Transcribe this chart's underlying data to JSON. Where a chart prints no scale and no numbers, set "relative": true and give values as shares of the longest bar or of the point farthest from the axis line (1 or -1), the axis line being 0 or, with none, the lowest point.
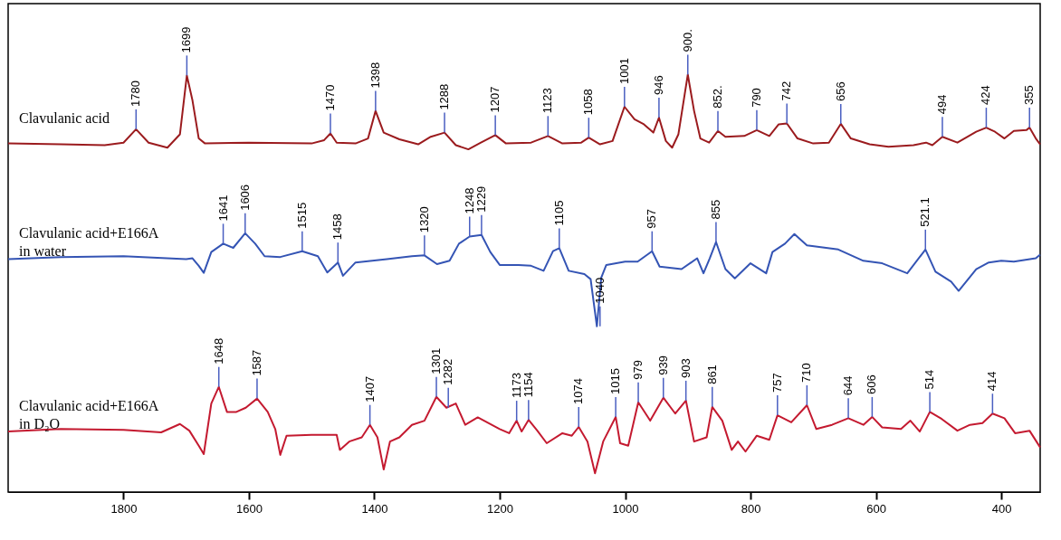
{
  "chart_data": {
    "type": "line",
    "relative": true,
    "xlim": [
      1984,
      338
    ],
    "xticks": [
      1800,
      1600,
      1400,
      1200,
      1000,
      800,
      600,
      400
    ],
    "grid": false,
    "legend": false,
    "series": [
      {
        "name": "Clavulanic acid",
        "color": "#9b1b1e",
        "x": [
          1984,
          1900,
          1830,
          1800,
          1780,
          1760,
          1730,
          1710,
          1699,
          1690,
          1680,
          1670,
          1600,
          1500,
          1480,
          1470,
          1460,
          1430,
          1410,
          1398,
          1385,
          1360,
          1330,
          1310,
          1288,
          1270,
          1250,
          1230,
          1207,
          1190,
          1150,
          1123,
          1100,
          1070,
          1058,
          1040,
          1020,
          1001,
          985,
          970,
          955,
          946,
          935,
          925,
          915,
          900,
          890,
          880,
          866,
          852,
          840,
          810,
          790,
          770,
          755,
          742,
          725,
          700,
          675,
          656,
          640,
          610,
          580,
          540,
          520,
          510,
          494,
          470,
          440,
          424,
          410,
          395,
          380,
          360,
          355,
          345,
          338
        ],
        "values": [
          0.835,
          0.833,
          0.831,
          0.837,
          0.869,
          0.837,
          0.825,
          0.857,
          0.998,
          0.938,
          0.847,
          0.835,
          0.837,
          0.835,
          0.843,
          0.859,
          0.837,
          0.835,
          0.847,
          0.913,
          0.861,
          0.845,
          0.833,
          0.851,
          0.861,
          0.831,
          0.821,
          0.837,
          0.855,
          0.835,
          0.837,
          0.853,
          0.835,
          0.837,
          0.849,
          0.833,
          0.841,
          0.923,
          0.893,
          0.881,
          0.861,
          0.897,
          0.841,
          0.825,
          0.857,
          1.0,
          0.913,
          0.847,
          0.837,
          0.865,
          0.851,
          0.853,
          0.867,
          0.853,
          0.881,
          0.883,
          0.847,
          0.835,
          0.837,
          0.882,
          0.847,
          0.833,
          0.827,
          0.831,
          0.837,
          0.831,
          0.851,
          0.837,
          0.863,
          0.873,
          0.863,
          0.847,
          0.865,
          0.867,
          0.873,
          0.847,
          0.833
        ]
      },
      {
        "name": "Clavulanic acid+E166A\nin water",
        "color": "#3454b4",
        "x": [
          1984,
          1900,
          1800,
          1700,
          1690,
          1680,
          1672,
          1660,
          1641,
          1625,
          1606,
          1590,
          1575,
          1550,
          1515,
          1490,
          1475,
          1458,
          1450,
          1430,
          1380,
          1340,
          1320,
          1300,
          1280,
          1265,
          1248,
          1229,
          1215,
          1200,
          1170,
          1150,
          1130,
          1115,
          1105,
          1090,
          1065,
          1055,
          1045,
          1038,
          1030,
          1000,
          980,
          957,
          945,
          910,
          885,
          875,
          865,
          855,
          840,
          825,
          800,
          775,
          765,
          745,
          730,
          710,
          660,
          620,
          590,
          550,
          521,
          505,
          480,
          468,
          440,
          420,
          400,
          380,
          345,
          338
        ],
        "values": [
          0.558,
          0.563,
          0.565,
          0.558,
          0.56,
          0.542,
          0.525,
          0.575,
          0.595,
          0.585,
          0.62,
          0.595,
          0.565,
          0.563,
          0.577,
          0.565,
          0.526,
          0.55,
          0.518,
          0.55,
          0.558,
          0.565,
          0.567,
          0.546,
          0.554,
          0.595,
          0.612,
          0.616,
          0.575,
          0.544,
          0.544,
          0.542,
          0.53,
          0.577,
          0.584,
          0.53,
          0.522,
          0.51,
          0.397,
          0.514,
          0.544,
          0.552,
          0.552,
          0.577,
          0.54,
          0.534,
          0.56,
          0.524,
          0.56,
          0.599,
          0.534,
          0.512,
          0.548,
          0.524,
          0.575,
          0.595,
          0.618,
          0.591,
          0.581,
          0.554,
          0.548,
          0.524,
          0.581,
          0.528,
          0.504,
          0.482,
          0.534,
          0.55,
          0.554,
          0.552,
          0.56,
          0.569
        ]
      },
      {
        "name": "Clavulanic acid+E166A\nin D₂O",
        "color": "#c41a30",
        "x": [
          1984,
          1900,
          1800,
          1740,
          1710,
          1695,
          1680,
          1672,
          1660,
          1648,
          1635,
          1620,
          1605,
          1587,
          1570,
          1558,
          1550,
          1540,
          1500,
          1460,
          1455,
          1440,
          1420,
          1407,
          1395,
          1385,
          1375,
          1360,
          1340,
          1320,
          1301,
          1285,
          1270,
          1255,
          1235,
          1200,
          1185,
          1173,
          1165,
          1154,
          1140,
          1125,
          1100,
          1085,
          1074,
          1060,
          1048,
          1035,
          1015,
          1008,
          995,
          979,
          960,
          939,
          920,
          903,
          890,
          870,
          861,
          845,
          830,
          820,
          808,
          790,
          770,
          757,
          735,
          710,
          695,
          670,
          644,
          620,
          606,
          590,
          560,
          545,
          530,
          514,
          495,
          470,
          450,
          430,
          414,
          395,
          378,
          355,
          338
        ],
        "values": [
          0.145,
          0.151,
          0.149,
          0.143,
          0.163,
          0.147,
          0.111,
          0.091,
          0.212,
          0.252,
          0.192,
          0.192,
          0.202,
          0.224,
          0.192,
          0.151,
          0.089,
          0.135,
          0.137,
          0.137,
          0.101,
          0.121,
          0.131,
          0.161,
          0.131,
          0.054,
          0.121,
          0.131,
          0.161,
          0.171,
          0.228,
          0.202,
          0.212,
          0.161,
          0.179,
          0.151,
          0.141,
          0.171,
          0.145,
          0.173,
          0.147,
          0.117,
          0.141,
          0.135,
          0.156,
          0.121,
          0.045,
          0.121,
          0.18,
          0.117,
          0.111,
          0.215,
          0.171,
          0.226,
          0.188,
          0.219,
          0.121,
          0.131,
          0.204,
          0.171,
          0.101,
          0.121,
          0.097,
          0.135,
          0.125,
          0.184,
          0.167,
          0.208,
          0.151,
          0.161,
          0.177,
          0.161,
          0.18,
          0.155,
          0.151,
          0.171,
          0.145,
          0.192,
          0.175,
          0.147,
          0.161,
          0.165,
          0.188,
          0.177,
          0.141,
          0.147,
          0.107
        ]
      }
    ],
    "annotations": [
      {
        "text": "1780",
        "x": 1780,
        "y": 0.869
      },
      {
        "text": "1699",
        "x": 1699,
        "y": 0.998
      },
      {
        "text": "1470",
        "x": 1470,
        "y": 0.859
      },
      {
        "text": "1398",
        "x": 1398,
        "y": 0.913
      },
      {
        "text": "1288",
        "x": 1288,
        "y": 0.861
      },
      {
        "text": "1207",
        "x": 1207,
        "y": 0.855
      },
      {
        "text": "1123",
        "x": 1123,
        "y": 0.853
      },
      {
        "text": "1058",
        "x": 1058,
        "y": 0.849
      },
      {
        "text": "1001",
        "x": 1001,
        "y": 0.923
      },
      {
        "text": "946",
        "x": 946,
        "y": 0.897
      },
      {
        "text": "900.",
        "x": 900,
        "y": 1.0
      },
      {
        "text": "852.",
        "x": 852,
        "y": 0.865
      },
      {
        "text": "790",
        "x": 790,
        "y": 0.867
      },
      {
        "text": "742",
        "x": 742,
        "y": 0.883
      },
      {
        "text": "656",
        "x": 656,
        "y": 0.882
      },
      {
        "text": "494",
        "x": 494,
        "y": 0.851
      },
      {
        "text": "424",
        "x": 424,
        "y": 0.873
      },
      {
        "text": "355",
        "x": 355,
        "y": 0.873
      },
      {
        "text": "1641",
        "x": 1641,
        "y": 0.595
      },
      {
        "text": "1606",
        "x": 1606,
        "y": 0.62
      },
      {
        "text": "1515",
        "x": 1515,
        "y": 0.577
      },
      {
        "text": "1458",
        "x": 1458,
        "y": 0.55
      },
      {
        "text": "1320",
        "x": 1320,
        "y": 0.567
      },
      {
        "text": "1248",
        "x": 1248,
        "y": 0.612
      },
      {
        "text": "1229",
        "x": 1229,
        "y": 0.616
      },
      {
        "text": "1105",
        "x": 1105,
        "y": 0.584
      },
      {
        "text": "1040",
        "x": 1040,
        "y": 0.397
      },
      {
        "text": "957",
        "x": 957,
        "y": 0.577
      },
      {
        "text": "855",
        "x": 855,
        "y": 0.599
      },
      {
        "text": "521.1",
        "x": 521,
        "y": 0.581
      },
      {
        "text": "1648",
        "x": 1648,
        "y": 0.252
      },
      {
        "text": "1587",
        "x": 1587,
        "y": 0.224
      },
      {
        "text": "1407",
        "x": 1407,
        "y": 0.161
      },
      {
        "text": "1301",
        "x": 1301,
        "y": 0.228
      },
      {
        "text": "1282",
        "x": 1282,
        "y": 0.202
      },
      {
        "text": "1173",
        "x": 1173,
        "y": 0.171
      },
      {
        "text": "1154",
        "x": 1154,
        "y": 0.173
      },
      {
        "text": "1074",
        "x": 1074,
        "y": 0.156
      },
      {
        "text": "1015",
        "x": 1015,
        "y": 0.18
      },
      {
        "text": "979",
        "x": 979,
        "y": 0.215
      },
      {
        "text": "939",
        "x": 939,
        "y": 0.226
      },
      {
        "text": "903",
        "x": 903,
        "y": 0.219
      },
      {
        "text": "861",
        "x": 861,
        "y": 0.204
      },
      {
        "text": "757",
        "x": 757,
        "y": 0.184
      },
      {
        "text": "710",
        "x": 710,
        "y": 0.208
      },
      {
        "text": "644",
        "x": 644,
        "y": 0.177
      },
      {
        "text": "606",
        "x": 606,
        "y": 0.18
      },
      {
        "text": "514",
        "x": 514,
        "y": 0.192
      },
      {
        "text": "414",
        "x": 414,
        "y": 0.188
      }
    ]
  }
}
